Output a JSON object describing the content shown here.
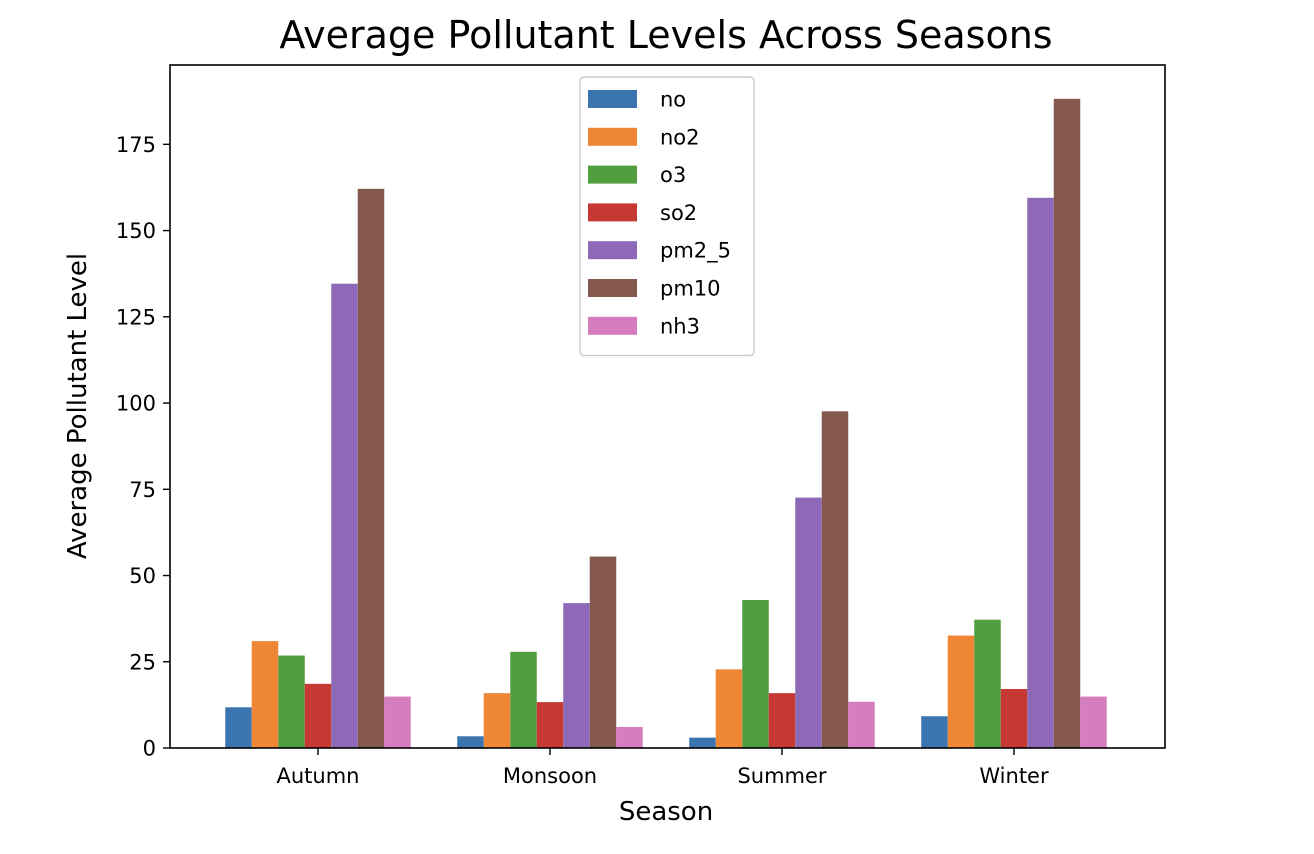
{
  "chart_data": {
    "type": "bar",
    "title": "Average Pollutant Levels Across Seasons",
    "xlabel": "Season",
    "ylabel": "Average Pollutant Level",
    "categories": [
      "Autumn",
      "Monsoon",
      "Summer",
      "Winter"
    ],
    "ylim": [
      0,
      198
    ],
    "yticks": [
      0,
      25,
      50,
      75,
      100,
      125,
      150,
      175
    ],
    "grid": false,
    "legend_position": "top-center",
    "series": [
      {
        "name": "no",
        "color": "#3b75af",
        "values": [
          11.8,
          3.4,
          3.0,
          9.2
        ]
      },
      {
        "name": "no2",
        "color": "#ef8636",
        "values": [
          31.0,
          15.9,
          22.8,
          32.6
        ]
      },
      {
        "name": "o3",
        "color": "#519e3e",
        "values": [
          26.8,
          27.9,
          42.9,
          37.2
        ]
      },
      {
        "name": "so2",
        "color": "#c53932",
        "values": [
          18.6,
          13.3,
          15.9,
          17.1
        ]
      },
      {
        "name": "pm2_5",
        "color": "#8d69b8",
        "values": [
          134.6,
          42.0,
          72.6,
          159.5
        ]
      },
      {
        "name": "pm10",
        "color": "#84584e",
        "values": [
          162.1,
          55.5,
          97.6,
          188.2
        ]
      },
      {
        "name": "nh3",
        "color": "#d57dbf",
        "values": [
          14.9,
          6.1,
          13.4,
          14.9
        ]
      }
    ]
  }
}
